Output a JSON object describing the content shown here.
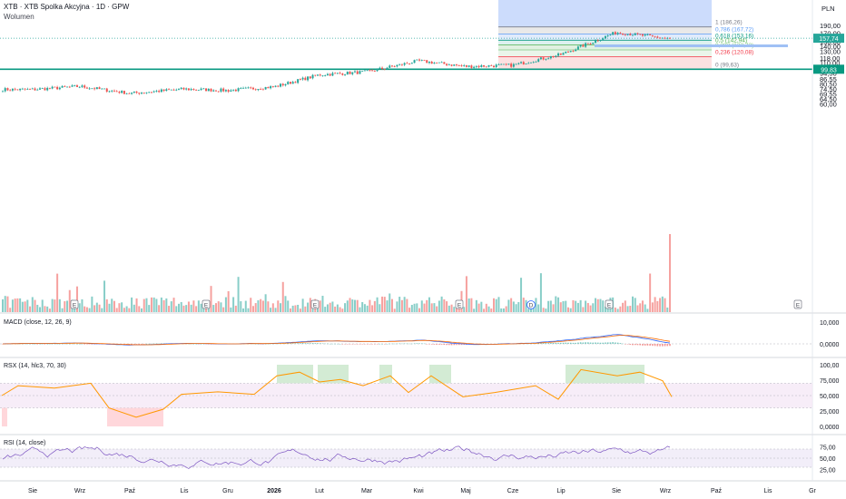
{
  "header": {
    "title": "XTB · XTB Spolka Akcyjna · 1D · GPW",
    "volume_label": "Wolumen"
  },
  "currency": "PLN",
  "price_axis": {
    "ticks": [
      "190,00",
      "170,00",
      "150,00",
      "140,00",
      "130,00",
      "118,00",
      "110,00",
      "102,00",
      "94,50",
      "86,55",
      "80,50",
      "74,50",
      "69,55",
      "64,50",
      "60,00"
    ]
  },
  "last_price": {
    "label": "157,74",
    "value": 157.74,
    "color": "#26a69a"
  },
  "support_line": {
    "label": "99,83",
    "value": 99.83,
    "color": "#089981"
  },
  "fib_levels": [
    {
      "ratio_label": "1 (186,26)",
      "value": 186.26,
      "color": "#787b86"
    },
    {
      "ratio_label": "0,786 (167,72)",
      "value": 167.72,
      "color": "#5b9cf6"
    },
    {
      "ratio_label": "0,618 (153,16)",
      "value": 153.16,
      "color": "#089981"
    },
    {
      "ratio_label": "0,5 (142,94)",
      "value": 142.94,
      "color": "#4caf50"
    },
    {
      "ratio_label": "0,382 (132,72)",
      "value": 132.72,
      "color": "#81c784"
    },
    {
      "ratio_label": "0,236 (120,08)",
      "value": 120.08,
      "color": "#f23645"
    },
    {
      "ratio_label": "0 (99,63)",
      "value": 99.63,
      "color": "#787b86"
    }
  ],
  "x_axis": {
    "ticks": [
      "Sie",
      "Wrz",
      "Paź",
      "Lis",
      "Gru",
      "2026",
      "Lut",
      "Mar",
      "Kwi",
      "Maj",
      "Cze",
      "Lip",
      "Sie",
      "Wrz",
      "Paź",
      "Lis",
      "Gr"
    ]
  },
  "event_markers": [
    "E",
    "E",
    "E",
    "E",
    "D",
    "E",
    "E"
  ],
  "macd": {
    "label": "MACD (close, 12, 26, 9)",
    "ticks": [
      "10,000",
      "0,0000"
    ]
  },
  "rsx": {
    "label": "RSX (14, hlc3, 70, 30)",
    "ticks": [
      "100,00",
      "75,000",
      "50,000",
      "25,000",
      "0,0000"
    ]
  },
  "rsi": {
    "label": "RSI (14, close)",
    "ticks": [
      "75,00",
      "50,00",
      "25,00"
    ]
  },
  "colors": {
    "up": "#26a69a",
    "down": "#ef5350",
    "macd_line": "#2962ff",
    "signal_line": "#ff6d00",
    "rsx_line": "#ff9800",
    "rsi_line": "#7e57c2"
  },
  "chart_data": {
    "type": "candlestick",
    "y_scale": "log",
    "ylim": [
      56,
      205
    ],
    "x_months": [
      "Sie",
      "Wrz",
      "Paź",
      "Lis",
      "Gru",
      "2026",
      "Lut",
      "Mar",
      "Kwi",
      "Maj",
      "Cze",
      "Lip",
      "Sie",
      "Wrz"
    ],
    "close_path": [
      {
        "x": "Sie",
        "y": 74.0
      },
      {
        "x": "Wrz",
        "y": 77.5
      },
      {
        "x": "Paź",
        "y": 70.0
      },
      {
        "x": "Lis",
        "y": 74.5
      },
      {
        "x": "Gru",
        "y": 73.0
      },
      {
        "x": "2026",
        "y": 77.0
      },
      {
        "x": "Lut",
        "y": 92.0
      },
      {
        "x": "Mar",
        "y": 96.0
      },
      {
        "x": "Kwi",
        "y": 113.0
      },
      {
        "x": "Maj",
        "y": 104.0
      },
      {
        "x": "Cze",
        "y": 106.0
      },
      {
        "x": "Lip",
        "y": 124.0
      },
      {
        "x": "Sie",
        "y": 172.0
      },
      {
        "x": "Wrz",
        "y": 157.74
      }
    ],
    "last_close": 157.74,
    "fib_high": 186.26,
    "fib_low": 99.63
  }
}
